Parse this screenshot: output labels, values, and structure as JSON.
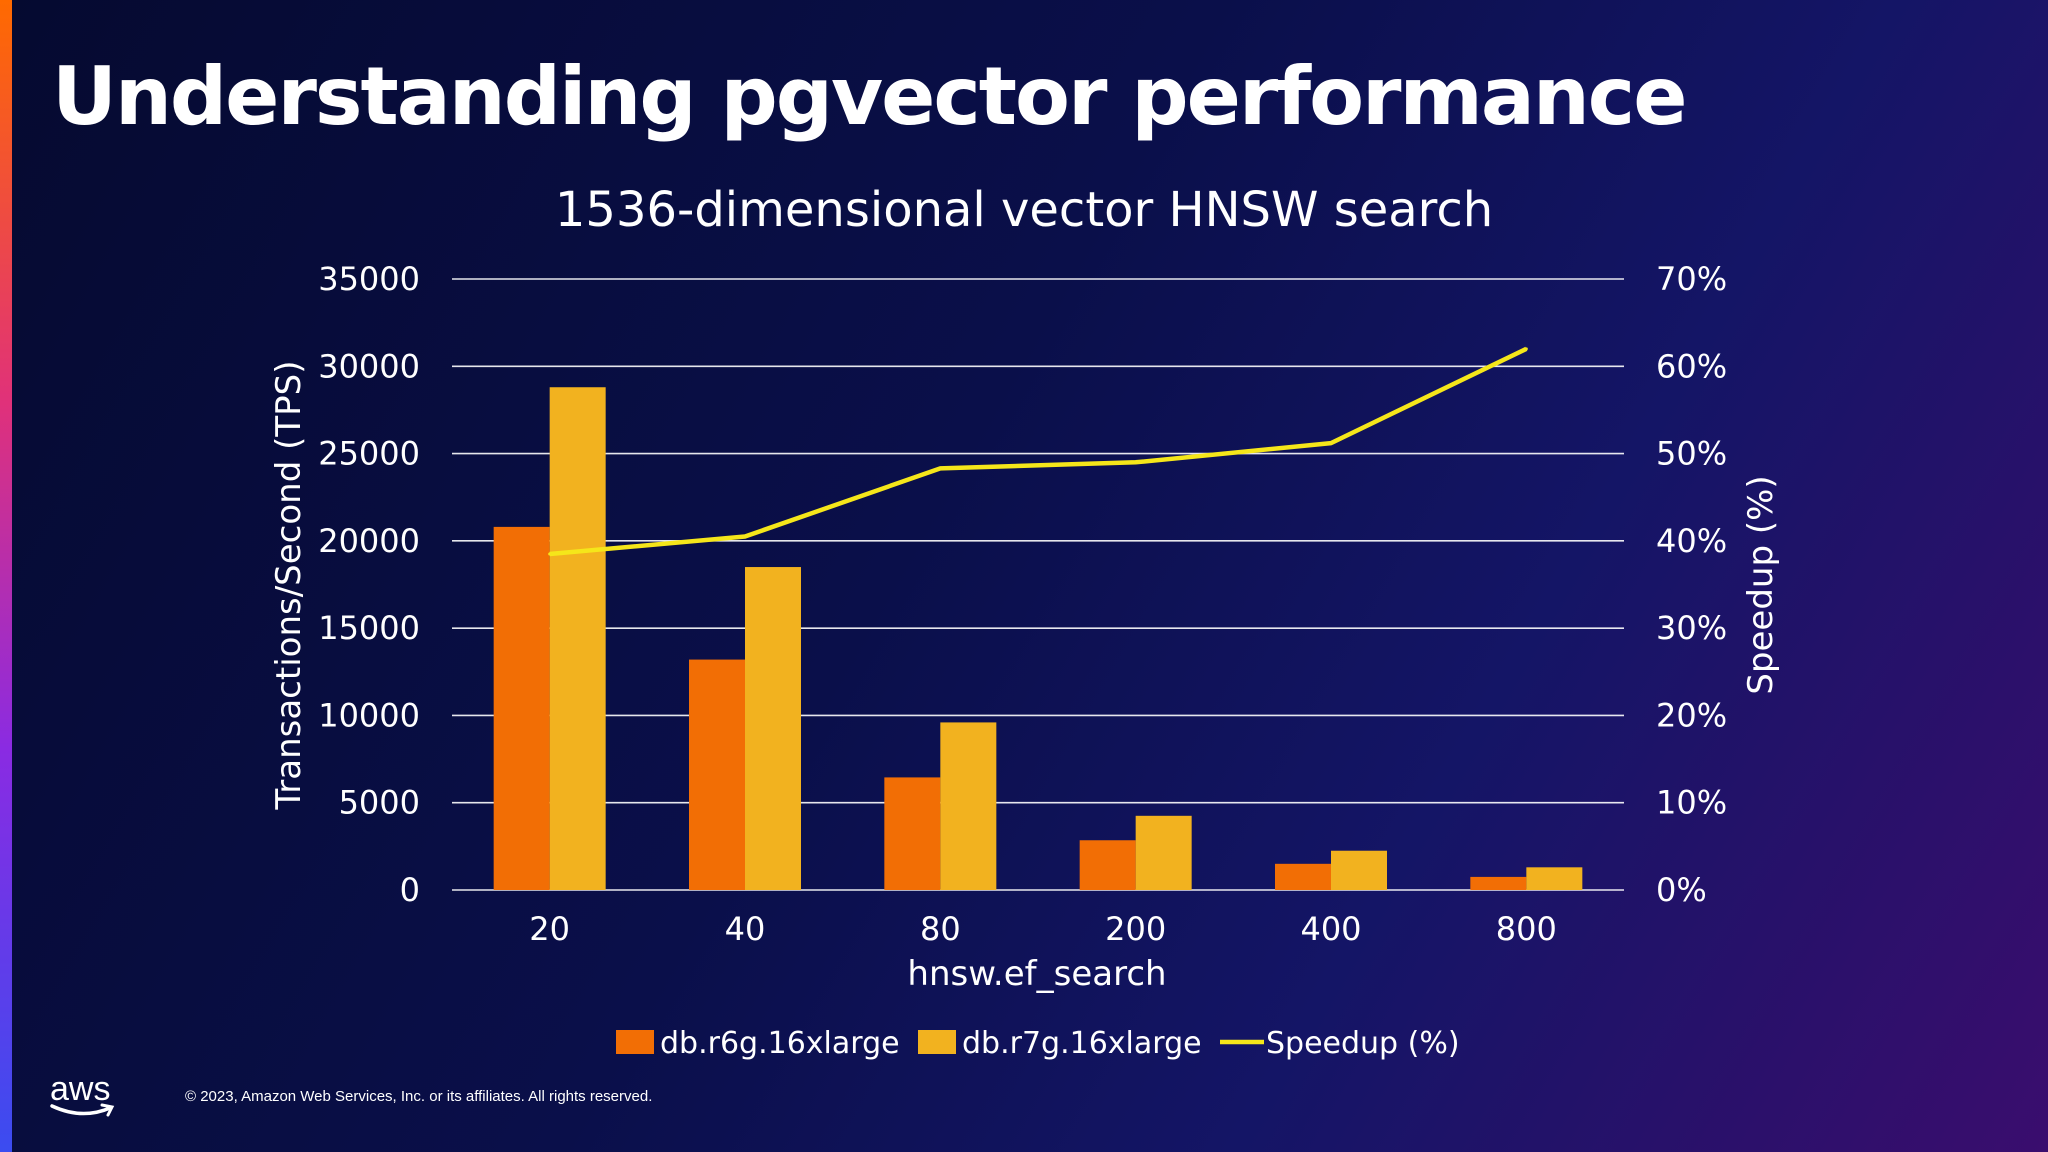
{
  "slide": {
    "title": "Understanding pgvector performance",
    "logo_text": "aws",
    "copyright": "© 2023, Amazon Web Services, Inc. or its affiliates. All rights reserved."
  },
  "colors": {
    "r6g": "#f26e05",
    "r7g": "#f2b21f",
    "speedup": "#f5e61a",
    "grid": "#ffffff"
  },
  "chart_data": {
    "type": "bar",
    "title": "1536-dimensional vector HNSW search",
    "xlabel": "hnsw.ef_search",
    "ylabel": "Transactions/Second (TPS)",
    "y2label": "Speedup (%)",
    "categories": [
      "20",
      "40",
      "80",
      "200",
      "400",
      "800"
    ],
    "ylim": [
      0,
      35000
    ],
    "y_ticks": [
      "35000",
      "30000",
      "25000",
      "20000",
      "15000",
      "10000",
      "5000",
      "0"
    ],
    "y2lim": [
      0,
      70
    ],
    "y2_ticks": [
      "70%",
      "60%",
      "50%",
      "40%",
      "30%",
      "20%",
      "10%",
      "0%"
    ],
    "grid": true,
    "legend_position": "bottom",
    "series": [
      {
        "name": "db.r6g.16xlarge",
        "kind": "bar",
        "axis": "left",
        "values": [
          20800,
          13200,
          6450,
          2850,
          1500,
          750
        ]
      },
      {
        "name": "db.r7g.16xlarge",
        "kind": "bar",
        "axis": "left",
        "values": [
          28800,
          18500,
          9600,
          4250,
          2250,
          1300
        ]
      },
      {
        "name": "Speedup (%)",
        "kind": "line",
        "axis": "right",
        "values": [
          38.5,
          40.5,
          48.3,
          49,
          51.2,
          62
        ]
      }
    ]
  }
}
